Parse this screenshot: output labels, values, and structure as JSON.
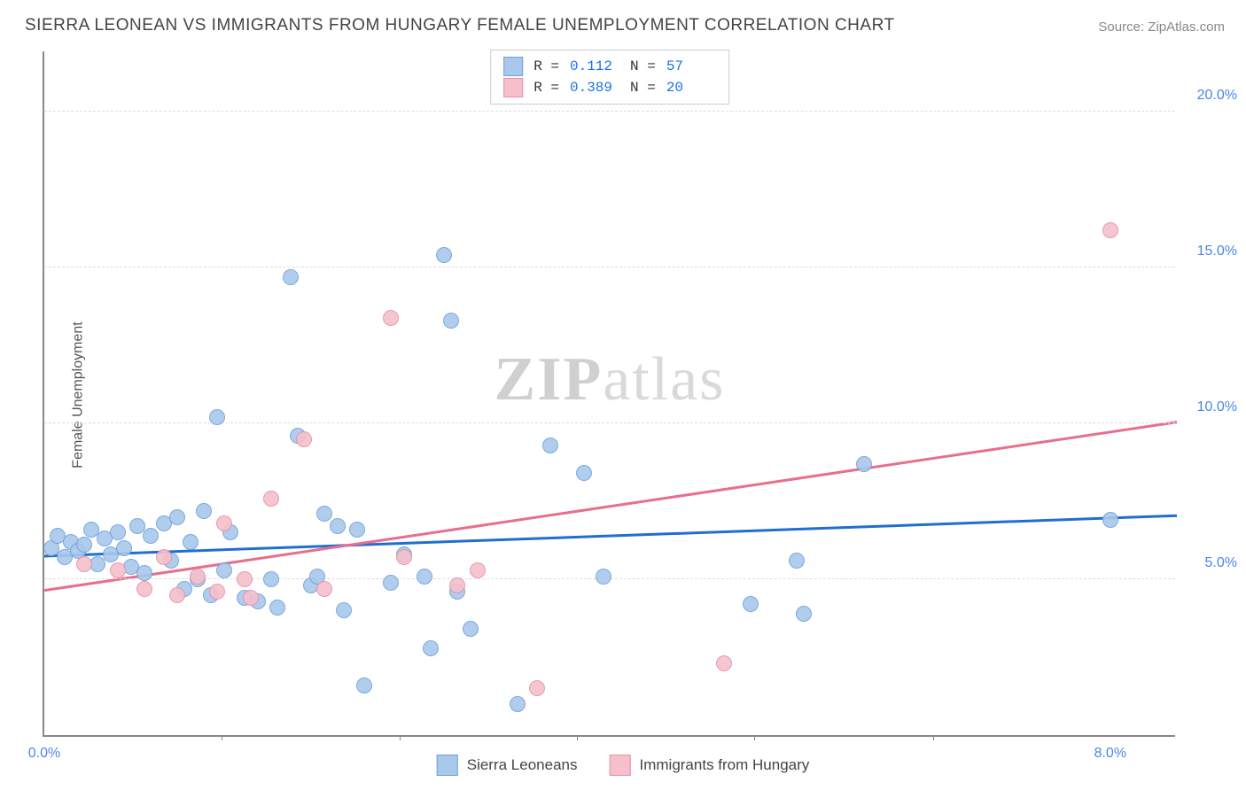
{
  "title": "SIERRA LEONEAN VS IMMIGRANTS FROM HUNGARY FEMALE UNEMPLOYMENT CORRELATION CHART",
  "source": {
    "prefix": "Source:",
    "name": "ZipAtlas.com"
  },
  "watermark": "ZIPatlas",
  "axes": {
    "y_label": "Female Unemployment",
    "x_min": 0,
    "x_max": 8.5,
    "y_min": 0,
    "y_max": 22,
    "x_ticks": [
      {
        "v": 0,
        "label": "0.0%"
      },
      {
        "v": 8,
        "label": "8.0%"
      }
    ],
    "x_minor_ticks": [
      1.33,
      2.67,
      4.0,
      5.33,
      6.67
    ],
    "y_ticks": [
      {
        "v": 5,
        "label": "5.0%"
      },
      {
        "v": 10,
        "label": "10.0%"
      },
      {
        "v": 15,
        "label": "15.0%"
      },
      {
        "v": 20,
        "label": "20.0%"
      }
    ],
    "grid_color": "#dddddd",
    "axis_color": "#888888",
    "tick_label_color": "#4a86e8"
  },
  "marker": {
    "radius": 9,
    "stroke_width": 1.5,
    "fill_opacity": 0.35
  },
  "series": [
    {
      "name": "Sierra Leoneans",
      "fill": "#a8c8ec",
      "stroke": "#6fa1d9",
      "line_color": "#1f6fd0",
      "line_width": 3,
      "reg": {
        "x1": 0,
        "y1": 5.8,
        "x2": 8.5,
        "y2": 7.1
      },
      "points": [
        [
          0.05,
          6.0
        ],
        [
          0.1,
          6.4
        ],
        [
          0.15,
          5.7
        ],
        [
          0.2,
          6.2
        ],
        [
          0.25,
          5.9
        ],
        [
          0.3,
          6.1
        ],
        [
          0.35,
          6.6
        ],
        [
          0.4,
          5.5
        ],
        [
          0.45,
          6.3
        ],
        [
          0.5,
          5.8
        ],
        [
          0.55,
          6.5
        ],
        [
          0.6,
          6.0
        ],
        [
          0.65,
          5.4
        ],
        [
          0.7,
          6.7
        ],
        [
          0.75,
          5.2
        ],
        [
          0.8,
          6.4
        ],
        [
          0.9,
          6.8
        ],
        [
          0.95,
          5.6
        ],
        [
          1.0,
          7.0
        ],
        [
          1.05,
          4.7
        ],
        [
          1.1,
          6.2
        ],
        [
          1.15,
          5.0
        ],
        [
          1.2,
          7.2
        ],
        [
          1.25,
          4.5
        ],
        [
          1.3,
          10.2
        ],
        [
          1.35,
          5.3
        ],
        [
          1.4,
          6.5
        ],
        [
          1.5,
          4.4
        ],
        [
          1.6,
          4.3
        ],
        [
          1.7,
          5.0
        ],
        [
          1.75,
          4.1
        ],
        [
          1.85,
          14.7
        ],
        [
          1.9,
          9.6
        ],
        [
          2.0,
          4.8
        ],
        [
          2.05,
          5.1
        ],
        [
          2.1,
          7.1
        ],
        [
          2.2,
          6.7
        ],
        [
          2.25,
          4.0
        ],
        [
          2.35,
          6.6
        ],
        [
          2.4,
          1.6
        ],
        [
          2.6,
          4.9
        ],
        [
          2.7,
          5.8
        ],
        [
          2.85,
          5.1
        ],
        [
          2.9,
          2.8
        ],
        [
          3.0,
          15.4
        ],
        [
          3.05,
          13.3
        ],
        [
          3.1,
          4.6
        ],
        [
          3.2,
          3.4
        ],
        [
          3.55,
          1.0
        ],
        [
          3.8,
          9.3
        ],
        [
          4.05,
          8.4
        ],
        [
          4.2,
          5.1
        ],
        [
          5.3,
          4.2
        ],
        [
          5.65,
          5.6
        ],
        [
          5.7,
          3.9
        ],
        [
          6.15,
          8.7
        ],
        [
          8.0,
          6.9
        ]
      ]
    },
    {
      "name": "Immigrants from Hungary",
      "fill": "#f5c0cc",
      "stroke": "#e98fa6",
      "line_color": "#e76f8d",
      "line_width": 3,
      "reg": {
        "x1": 0,
        "y1": 4.7,
        "x2": 8.5,
        "y2": 10.1
      },
      "points": [
        [
          0.3,
          5.5
        ],
        [
          0.55,
          5.3
        ],
        [
          0.75,
          4.7
        ],
        [
          0.9,
          5.7
        ],
        [
          1.0,
          4.5
        ],
        [
          1.15,
          5.1
        ],
        [
          1.3,
          4.6
        ],
        [
          1.35,
          6.8
        ],
        [
          1.5,
          5.0
        ],
        [
          1.55,
          4.4
        ],
        [
          1.7,
          7.6
        ],
        [
          1.95,
          9.5
        ],
        [
          2.1,
          4.7
        ],
        [
          2.6,
          13.4
        ],
        [
          2.7,
          5.7
        ],
        [
          3.1,
          4.8
        ],
        [
          3.25,
          5.3
        ],
        [
          3.7,
          1.5
        ],
        [
          5.1,
          2.3
        ],
        [
          8.0,
          16.2
        ]
      ]
    }
  ],
  "legend_top": [
    {
      "r": "0.112",
      "n": "57"
    },
    {
      "r": "0.389",
      "n": "20"
    }
  ],
  "colors": {
    "background": "#ffffff",
    "text": "#444444",
    "value": "#1a73e8"
  }
}
